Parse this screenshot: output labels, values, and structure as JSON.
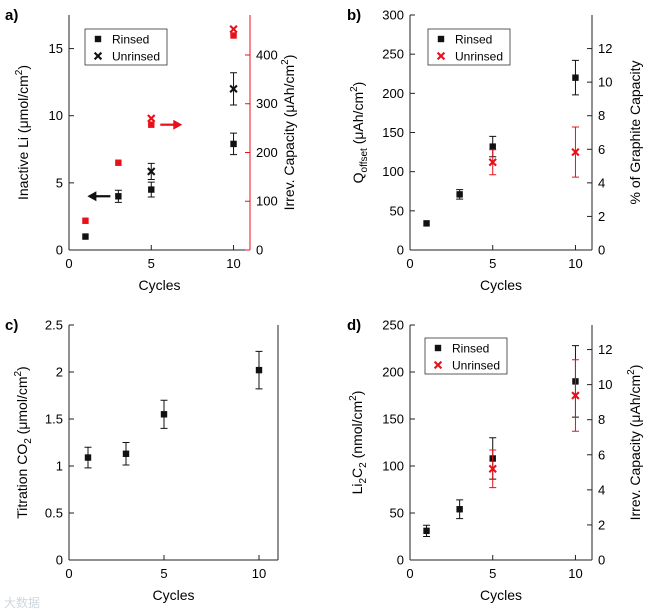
{
  "colors": {
    "black": "#111111",
    "red": "#e8101a",
    "axis": "#222222"
  },
  "watermark": "大数据",
  "chart_data": [
    {
      "panel": "a)",
      "type": "scatter",
      "xlabel": "Cycles",
      "ylabel": "Inactive Li (μmol/cm²)",
      "ylabel_right": "Irrev. Capacity (μAh/cm²)",
      "xlim": [
        0,
        11
      ],
      "ylim": [
        0,
        17.5
      ],
      "ylim_right": [
        0,
        482
      ],
      "xticks": [
        "0",
        "5",
        "10"
      ],
      "xtick_values": [
        0,
        5,
        10
      ],
      "yticks": [
        "0",
        "5",
        "10",
        "15"
      ],
      "ytick_values": [
        0,
        5,
        10,
        15
      ],
      "yticks_right": [
        "0",
        "100",
        "200",
        "300",
        "400"
      ],
      "ytick_values_right": [
        0,
        100,
        200,
        300,
        400
      ],
      "legend": [
        {
          "label": "Rinsed",
          "marker": "square"
        },
        {
          "label": "Unrinsed",
          "marker": "x"
        }
      ],
      "series": [
        {
          "name": "Rinsed",
          "marker": "square",
          "color": "#111111",
          "axis": "left",
          "x": [
            1,
            3,
            5,
            10
          ],
          "y": [
            1.0,
            4.0,
            4.5,
            7.9
          ],
          "err": [
            0,
            0.45,
            0.55,
            0.8
          ]
        },
        {
          "name": "Unrinsed",
          "marker": "x",
          "color": "#111111",
          "axis": "left",
          "x": [
            5,
            10
          ],
          "y": [
            5.85,
            12.0
          ],
          "err": [
            0.6,
            1.2
          ]
        },
        {
          "name": "Rinsed (irrev. capacity)",
          "marker": "square",
          "color": "#e8101a",
          "axis": "right",
          "x": [
            1,
            3,
            5,
            10
          ],
          "y": [
            60,
            179,
            257,
            440
          ],
          "err": [
            0,
            0,
            0,
            0
          ]
        },
        {
          "name": "Unrinsed (irrev. capacity)",
          "marker": "x",
          "color": "#e8101a",
          "axis": "right",
          "x": [
            5,
            10
          ],
          "y": [
            270,
            453
          ],
          "err": [
            0,
            0
          ]
        }
      ],
      "annotations": [
        {
          "type": "arrow",
          "direction": "left",
          "color": "#111111",
          "x": 3,
          "y": 4.0
        },
        {
          "type": "arrow",
          "direction": "right",
          "color": "#e8101a",
          "x": 5,
          "y": 257
        }
      ]
    },
    {
      "panel": "b)",
      "type": "scatter",
      "xlabel": "Cycles",
      "ylabel": "Q_offset (μAh/cm²)",
      "ylabel_right": "% of Graphite Capacity",
      "xlim": [
        0,
        11
      ],
      "ylim": [
        0,
        300
      ],
      "ylim_right": [
        0,
        14
      ],
      "xticks": [
        "0",
        "5",
        "10"
      ],
      "xtick_values": [
        0,
        5,
        10
      ],
      "yticks": [
        "0",
        "50",
        "100",
        "150",
        "200",
        "250",
        "300"
      ],
      "ytick_values": [
        0,
        50,
        100,
        150,
        200,
        250,
        300
      ],
      "yticks_right": [
        "0",
        "2",
        "4",
        "6",
        "8",
        "10",
        "12"
      ],
      "ytick_values_right": [
        0,
        2,
        4,
        6,
        8,
        10,
        12
      ],
      "legend": [
        {
          "label": "Rinsed",
          "marker": "square",
          "color": "#111111"
        },
        {
          "label": "Unrinsed",
          "marker": "x",
          "color": "#e8101a"
        }
      ],
      "series": [
        {
          "name": "Rinsed",
          "marker": "square",
          "color": "#111111",
          "axis": "left",
          "x": [
            1,
            3,
            5,
            10
          ],
          "y": [
            34,
            71,
            132,
            220
          ],
          "err": [
            0,
            6,
            13,
            22
          ]
        },
        {
          "name": "Unrinsed",
          "marker": "x",
          "color": "#e8101a",
          "axis": "left",
          "x": [
            5,
            10
          ],
          "y": [
            112,
            125
          ],
          "err": [
            16,
            32
          ]
        }
      ]
    },
    {
      "panel": "c)",
      "type": "scatter",
      "xlabel": "Cycles",
      "ylabel": "Titration CO₂ (μmol/cm²)",
      "xlim": [
        0,
        11
      ],
      "ylim": [
        0,
        2.5
      ],
      "xticks": [
        "0",
        "5",
        "10"
      ],
      "xtick_values": [
        0,
        5,
        10
      ],
      "yticks": [
        "0",
        "0.5",
        "1",
        "1.5",
        "2",
        "2.5"
      ],
      "ytick_values": [
        0,
        0.5,
        1,
        1.5,
        2,
        2.5
      ],
      "series": [
        {
          "name": "Titration CO2",
          "marker": "square",
          "color": "#111111",
          "axis": "left",
          "x": [
            1,
            3,
            5,
            10
          ],
          "y": [
            1.09,
            1.13,
            1.55,
            2.02
          ],
          "err": [
            0.11,
            0.12,
            0.15,
            0.2
          ]
        }
      ]
    },
    {
      "panel": "d)",
      "type": "scatter",
      "xlabel": "Cycles",
      "ylabel": "Li₂C₂ (nmol/cm²)",
      "ylabel_right": "Irrev. Capacity (μAh/cm²)",
      "xlim": [
        0,
        11
      ],
      "ylim": [
        0,
        250
      ],
      "ylim_right": [
        0,
        13.4
      ],
      "xticks": [
        "0",
        "5",
        "10"
      ],
      "xtick_values": [
        0,
        5,
        10
      ],
      "yticks": [
        "0",
        "50",
        "100",
        "150",
        "200",
        "250"
      ],
      "ytick_values": [
        0,
        50,
        100,
        150,
        200,
        250
      ],
      "yticks_right": [
        "0",
        "2",
        "4",
        "6",
        "8",
        "10",
        "12"
      ],
      "ytick_values_right": [
        0,
        2,
        4,
        6,
        8,
        10,
        12
      ],
      "legend": [
        {
          "label": "Rinsed",
          "marker": "square",
          "color": "#111111"
        },
        {
          "label": "Unrinsed",
          "marker": "x",
          "color": "#e8101a"
        }
      ],
      "series": [
        {
          "name": "Rinsed",
          "marker": "square",
          "color": "#111111",
          "axis": "left",
          "x": [
            1,
            3,
            5,
            10
          ],
          "y": [
            31,
            54,
            108,
            190
          ],
          "err": [
            6,
            10,
            22,
            38
          ]
        },
        {
          "name": "Unrinsed",
          "marker": "x",
          "color": "#e8101a",
          "axis": "left",
          "x": [
            5,
            10
          ],
          "y": [
            97,
            175
          ],
          "err": [
            20,
            38
          ]
        }
      ]
    }
  ]
}
